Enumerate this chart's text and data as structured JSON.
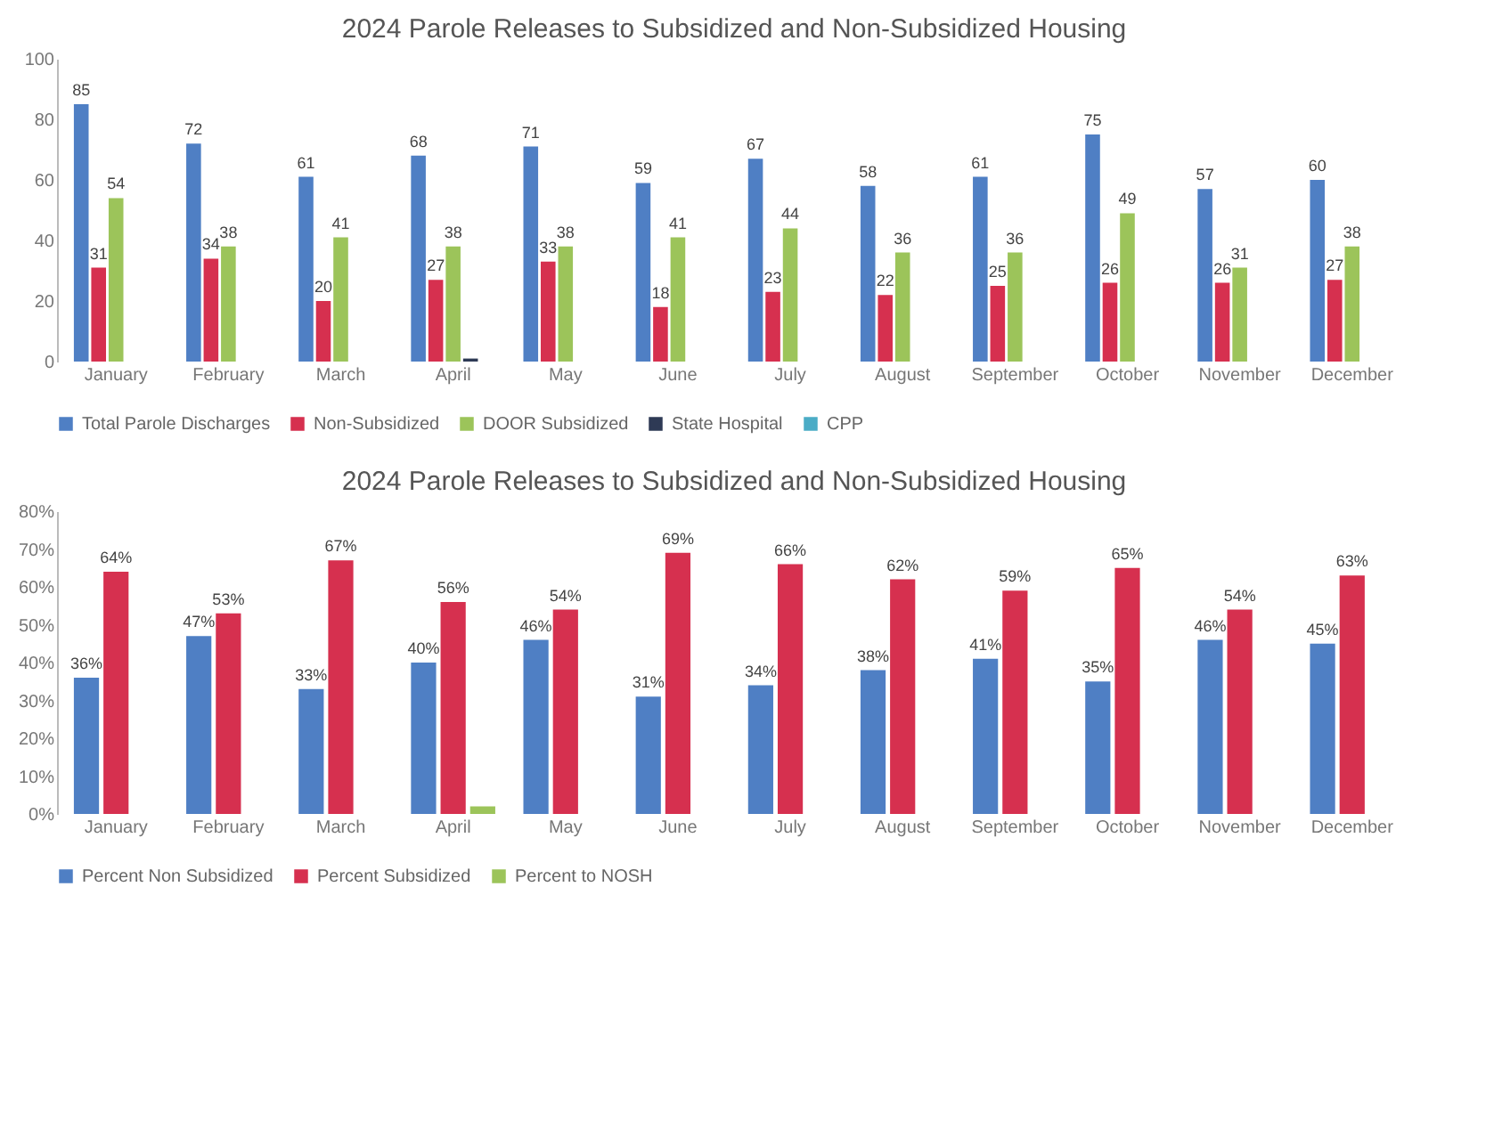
{
  "chart_data": [
    {
      "type": "bar",
      "title": "2024 Parole Releases to Subsidized and Non-Subsidized Housing",
      "categories": [
        "January",
        "February",
        "March",
        "April",
        "May",
        "June",
        "July",
        "August",
        "September",
        "October",
        "November",
        "December"
      ],
      "ylim": [
        0,
        100
      ],
      "yticks": [
        0,
        20,
        40,
        60,
        80,
        100
      ],
      "legend": "bottom",
      "grid": false,
      "series": [
        {
          "name": "Total Parole Discharges",
          "color": "#4f7fc4",
          "values": [
            85,
            72,
            61,
            68,
            71,
            59,
            67,
            58,
            61,
            75,
            57,
            60
          ],
          "value_labels": [
            "85",
            "72",
            "61",
            "68",
            "71",
            "59",
            "67",
            "58",
            "61",
            "75",
            "57",
            "60"
          ]
        },
        {
          "name": "Non-Subsidized",
          "color": "#d6304f",
          "values": [
            31,
            34,
            20,
            27,
            33,
            18,
            23,
            22,
            25,
            26,
            26,
            27
          ],
          "value_labels": [
            "31",
            "34",
            "20",
            "27",
            "33",
            "18",
            "23",
            "22",
            "25",
            "26",
            "26",
            "27"
          ]
        },
        {
          "name": "DOOR Subsidized",
          "color": "#9cc45a",
          "values": [
            54,
            38,
            41,
            38,
            38,
            41,
            44,
            36,
            36,
            49,
            31,
            38
          ],
          "value_labels": [
            "54",
            "38",
            "41",
            "38",
            "38",
            "41",
            "44",
            "36",
            "36",
            "49",
            "31",
            "38"
          ]
        },
        {
          "name": "State Hospital",
          "color": "#2e3a55",
          "values": [
            null,
            null,
            null,
            1,
            null,
            null,
            null,
            null,
            null,
            null,
            null,
            null
          ]
        },
        {
          "name": "CPP",
          "color": "#4bacc6",
          "values": [
            null,
            null,
            null,
            null,
            null,
            null,
            null,
            null,
            null,
            null,
            null,
            null
          ]
        }
      ]
    },
    {
      "type": "bar",
      "title": "2024 Parole Releases to Subsidized and Non-Subsidized Housing",
      "categories": [
        "January",
        "February",
        "March",
        "April",
        "May",
        "June",
        "July",
        "August",
        "September",
        "October",
        "November",
        "December"
      ],
      "ylim": [
        0,
        80
      ],
      "yticks": [
        {
          "value": 0,
          "label": "0%"
        },
        {
          "value": 10,
          "label": "10%"
        },
        {
          "value": 20,
          "label": "20%"
        },
        {
          "value": 30,
          "label": "30%"
        },
        {
          "value": 40,
          "label": "40%"
        },
        {
          "value": 50,
          "label": "50%"
        },
        {
          "value": 60,
          "label": "60%"
        },
        {
          "value": 70,
          "label": "70%"
        },
        {
          "value": 80,
          "label": "80%"
        }
      ],
      "legend": "bottom",
      "grid": false,
      "series": [
        {
          "name": "Percent Non Subsidized",
          "color": "#4f7fc4",
          "values": [
            36,
            47,
            33,
            40,
            46,
            31,
            34,
            38,
            41,
            35,
            46,
            45
          ],
          "value_labels": [
            "36%",
            "47%",
            "33%",
            "40%",
            "46%",
            "31%",
            "34%",
            "38%",
            "41%",
            "35%",
            "46%",
            "45%"
          ]
        },
        {
          "name": "Percent Subsidized",
          "color": "#d6304f",
          "values": [
            64,
            53,
            67,
            56,
            54,
            69,
            66,
            62,
            59,
            65,
            54,
            63
          ],
          "value_labels": [
            "64%",
            "53%",
            "67%",
            "56%",
            "54%",
            "69%",
            "66%",
            "62%",
            "59%",
            "65%",
            "54%",
            "63%"
          ]
        },
        {
          "name": "Percent to NOSH",
          "color": "#9cc45a",
          "values": [
            null,
            null,
            null,
            2,
            null,
            null,
            null,
            null,
            null,
            null,
            null,
            null
          ]
        }
      ]
    }
  ]
}
